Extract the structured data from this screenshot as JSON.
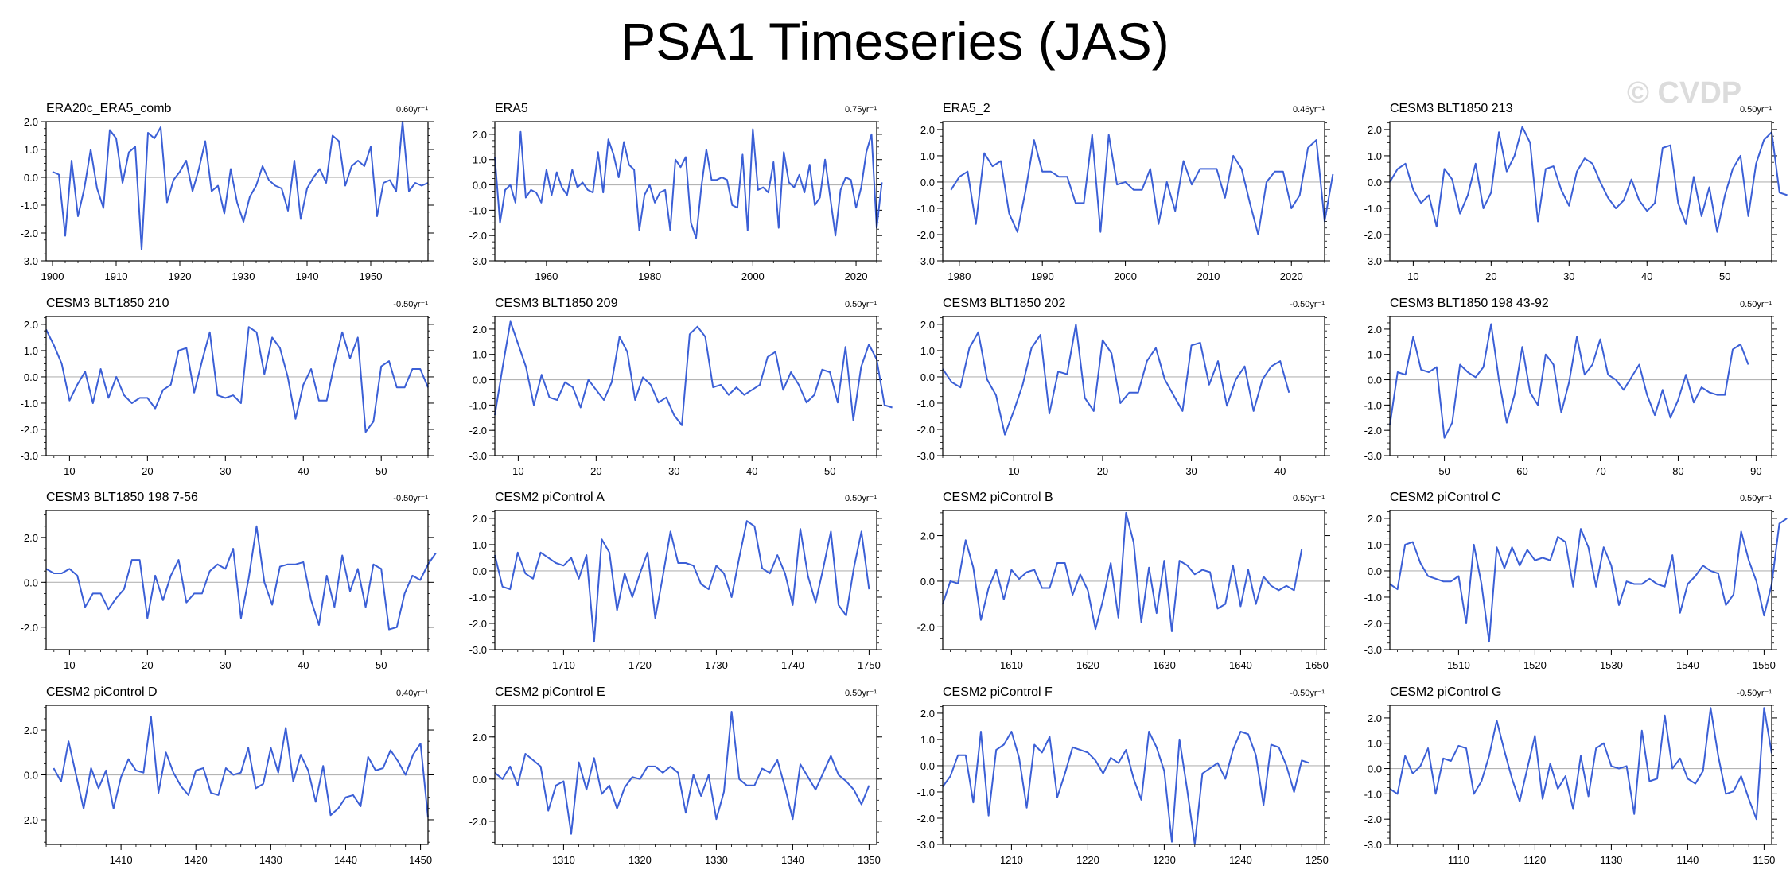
{
  "page": {
    "title": "PSA1 Timeseries (JAS)",
    "watermark": "© CVDP"
  },
  "style": {
    "line_color": "#3b5fd6",
    "zero_line_color": "#b4b4b4",
    "axis_color": "#000000"
  },
  "chart_data": [
    {
      "type": "line",
      "title": "ERA20c_ERA5_comb",
      "trend": "0.60yr⁻¹",
      "xlim": [
        1899,
        1959
      ],
      "ylim": [
        -3,
        2
      ],
      "yticks": [
        -3,
        -2,
        -1,
        0,
        1,
        2
      ],
      "ytick_labels": [
        "-3.0",
        "-2.0",
        "-1.0",
        "0.0",
        "1.0",
        "2.0"
      ],
      "xticks": [
        1900,
        1910,
        1920,
        1930,
        1940,
        1950
      ],
      "x_start": 1900,
      "values": [
        0.2,
        0.1,
        -2.1,
        0.6,
        -1.4,
        -0.4,
        1.0,
        -0.4,
        -1.1,
        1.7,
        1.4,
        -0.2,
        0.9,
        1.1,
        -2.6,
        1.6,
        1.4,
        1.8,
        -0.9,
        -0.1,
        0.2,
        0.6,
        -0.5,
        0.3,
        1.3,
        -0.5,
        -0.3,
        -1.3,
        0.3,
        -0.9,
        -1.6,
        -0.7,
        -0.3,
        0.4,
        -0.1,
        -0.3,
        -0.4,
        -1.2,
        0.6,
        -1.5,
        -0.4,
        0.0,
        0.3,
        -0.2,
        1.5,
        1.3,
        -0.3,
        0.4,
        0.6,
        0.4,
        1.1,
        -1.4,
        -0.2,
        -0.1,
        -0.5,
        2.0,
        -0.5,
        -0.2,
        -0.3,
        -0.2
      ]
    },
    {
      "type": "line",
      "title": "ERA5",
      "trend": "0.75yr⁻¹",
      "xlim": [
        1950,
        2024
      ],
      "ylim": [
        -3,
        2.5
      ],
      "yticks": [
        -3,
        -2,
        -1,
        0,
        1,
        2
      ],
      "ytick_labels": [
        "-3.0",
        "-2.0",
        "-1.0",
        "0.0",
        "1.0",
        "2.0"
      ],
      "xticks": [
        1960,
        1980,
        2000,
        2020
      ],
      "x_start": 1950,
      "values": [
        1.1,
        -1.5,
        -0.2,
        0.0,
        -0.7,
        2.1,
        -0.5,
        -0.2,
        -0.3,
        -0.7,
        0.6,
        -0.4,
        0.5,
        -0.1,
        -0.4,
        0.6,
        -0.1,
        0.1,
        -0.2,
        -0.3,
        1.3,
        -0.3,
        1.8,
        1.2,
        0.3,
        1.7,
        0.8,
        0.6,
        -1.8,
        -0.4,
        0.0,
        -0.7,
        -0.3,
        -0.2,
        -1.8,
        1.0,
        0.7,
        1.1,
        -1.5,
        -2.1,
        -0.1,
        1.4,
        0.2,
        0.2,
        0.3,
        0.2,
        -0.8,
        -0.9,
        1.2,
        -1.8,
        2.2,
        -0.2,
        -0.1,
        -0.3,
        0.9,
        -1.7,
        1.3,
        0.1,
        -0.1,
        0.4,
        -0.3,
        0.8,
        -0.8,
        -0.5,
        1.0,
        -0.5,
        -2.0,
        -0.2,
        0.3,
        0.2,
        -0.9,
        -0.1,
        1.3,
        2.0,
        -1.7,
        0.1
      ]
    },
    {
      "type": "line",
      "title": "ERA5_2",
      "trend": "0.46yr⁻¹",
      "xlim": [
        1978,
        2024
      ],
      "ylim": [
        -3,
        2.3
      ],
      "yticks": [
        -3,
        -2,
        -1,
        0,
        1,
        2
      ],
      "ytick_labels": [
        "-3.0",
        "-2.0",
        "-1.0",
        "0.0",
        "1.0",
        "2.0"
      ],
      "xticks": [
        1980,
        1990,
        2000,
        2010,
        2020
      ],
      "x_start": 1979,
      "values": [
        -0.3,
        0.2,
        0.4,
        -1.6,
        1.1,
        0.6,
        0.8,
        -1.2,
        -1.9,
        -0.3,
        1.6,
        0.4,
        0.4,
        0.2,
        0.2,
        -0.8,
        -0.8,
        1.8,
        -1.9,
        1.8,
        -0.1,
        0.0,
        -0.3,
        -0.3,
        0.5,
        -1.6,
        0.0,
        -1.1,
        0.8,
        -0.1,
        0.5,
        0.5,
        0.5,
        -0.6,
        1.0,
        0.5,
        -0.8,
        -2.0,
        0.0,
        0.4,
        0.4,
        -1.0,
        -0.5,
        1.3,
        1.6,
        -1.5,
        0.3
      ]
    },
    {
      "type": "line",
      "title": "CESM3 BLT1850 213",
      "trend": "0.50yr⁻¹",
      "xlim": [
        7,
        56
      ],
      "ylim": [
        -3,
        2.3
      ],
      "yticks": [
        -3,
        -2,
        -1,
        0,
        1,
        2
      ],
      "ytick_labels": [
        "-3.0",
        "-2.0",
        "-1.0",
        "0.0",
        "1.0",
        "2.0"
      ],
      "xticks": [
        10,
        20,
        30,
        40,
        50
      ],
      "x_start": 7,
      "values": [
        0.0,
        0.5,
        0.7,
        -0.3,
        -0.8,
        -0.5,
        -1.7,
        0.5,
        0.1,
        -1.2,
        -0.5,
        0.7,
        -1.0,
        -0.4,
        1.9,
        0.4,
        1.0,
        2.1,
        1.5,
        -1.5,
        0.5,
        0.6,
        -0.3,
        -0.9,
        0.4,
        0.9,
        0.7,
        0.0,
        -0.6,
        -1.0,
        -0.7,
        0.1,
        -0.7,
        -1.1,
        -0.8,
        1.3,
        1.4,
        -0.8,
        -1.6,
        0.2,
        -1.3,
        -0.2,
        -1.9,
        -0.5,
        0.5,
        1.0,
        -1.3,
        0.7,
        1.6,
        1.9,
        -0.4,
        -0.5
      ]
    },
    {
      "type": "line",
      "title": "CESM3 BLT1850 210",
      "trend": "-0.50yr⁻¹",
      "xlim": [
        7,
        56
      ],
      "ylim": [
        -3,
        2.3
      ],
      "yticks": [
        -3,
        -2,
        -1,
        0,
        1,
        2
      ],
      "ytick_labels": [
        "-3.0",
        "-2.0",
        "-1.0",
        "0.0",
        "1.0",
        "2.0"
      ],
      "xticks": [
        10,
        20,
        30,
        40,
        50
      ],
      "x_start": 7,
      "values": [
        1.8,
        1.2,
        0.5,
        -0.9,
        -0.3,
        0.2,
        -1.0,
        0.3,
        -0.8,
        0.0,
        -0.7,
        -1.0,
        -0.8,
        -0.8,
        -1.2,
        -0.5,
        -0.3,
        1.0,
        1.1,
        -0.6,
        0.6,
        1.7,
        -0.7,
        -0.8,
        -0.7,
        -1.0,
        1.9,
        1.7,
        0.1,
        1.5,
        1.1,
        0.0,
        -1.6,
        -0.3,
        0.3,
        -0.9,
        -0.9,
        0.5,
        1.7,
        0.7,
        1.5,
        -2.1,
        -1.7,
        0.4,
        0.6,
        -0.4,
        -0.4,
        0.3,
        0.3,
        -0.4
      ]
    },
    {
      "type": "line",
      "title": "CESM3 BLT1850 209",
      "trend": "0.50yr⁻¹",
      "xlim": [
        7,
        56
      ],
      "ylim": [
        -3,
        2.5
      ],
      "yticks": [
        -3,
        -2,
        -1,
        0,
        1,
        2
      ],
      "ytick_labels": [
        "-3.0",
        "-2.0",
        "-1.0",
        "0.0",
        "1.0",
        "2.0"
      ],
      "xticks": [
        10,
        20,
        30,
        40,
        50
      ],
      "x_start": 7,
      "values": [
        -1.4,
        0.5,
        2.3,
        1.4,
        0.5,
        -1.0,
        0.2,
        -0.7,
        -0.8,
        -0.1,
        -0.3,
        -1.1,
        0.0,
        -0.4,
        -0.8,
        -0.1,
        1.7,
        1.1,
        -0.8,
        0.1,
        -0.2,
        -0.9,
        -0.7,
        -1.4,
        -1.8,
        1.8,
        2.1,
        1.7,
        -0.3,
        -0.2,
        -0.6,
        -0.3,
        -0.6,
        -0.4,
        -0.2,
        0.9,
        1.1,
        -0.4,
        0.3,
        -0.2,
        -0.9,
        -0.6,
        0.4,
        0.3,
        -0.9,
        1.3,
        -1.6,
        0.5,
        1.4,
        0.8,
        -1.0,
        -1.1
      ]
    },
    {
      "type": "line",
      "title": "CESM3 BLT1850 202",
      "trend": "-0.50yr⁻¹",
      "xlim": [
        2,
        45
      ],
      "ylim": [
        -3,
        2.3
      ],
      "yticks": [
        -3,
        -2,
        -1,
        0,
        1,
        2
      ],
      "ytick_labels": [
        "-3.0",
        "-2.0",
        "-1.0",
        "0.0",
        "1.0",
        "2.0"
      ],
      "xticks": [
        10,
        20,
        30,
        40
      ],
      "x_start": 2,
      "values": [
        0.3,
        -0.2,
        -0.4,
        1.1,
        1.7,
        -0.1,
        -0.7,
        -2.2,
        -1.3,
        -0.3,
        1.1,
        1.6,
        -1.4,
        0.2,
        0.1,
        2.0,
        -0.8,
        -1.3,
        1.4,
        0.9,
        -1.0,
        -0.6,
        -0.6,
        0.6,
        1.1,
        -0.1,
        -0.7,
        -1.3,
        1.2,
        1.3,
        -0.3,
        0.6,
        -1.1,
        -0.1,
        0.4,
        -1.3,
        -0.1,
        0.4,
        0.6,
        -0.6
      ]
    },
    {
      "type": "line",
      "title": "CESM3 BLT1850 198 43-92",
      "trend": "0.50yr⁻¹",
      "xlim": [
        43,
        92
      ],
      "ylim": [
        -3,
        2.5
      ],
      "yticks": [
        -3,
        -2,
        -1,
        0,
        1,
        2
      ],
      "ytick_labels": [
        "-3.0",
        "-2.0",
        "-1.0",
        "0.0",
        "1.0",
        "2.0"
      ],
      "xticks": [
        50,
        60,
        70,
        80,
        90
      ],
      "x_start": 43,
      "values": [
        -1.8,
        0.3,
        0.2,
        1.7,
        0.4,
        0.3,
        0.5,
        -2.3,
        -1.7,
        0.6,
        0.3,
        0.1,
        0.5,
        2.2,
        0.0,
        -1.7,
        -0.6,
        1.3,
        -0.5,
        -1.0,
        1.0,
        0.6,
        -1.3,
        -0.1,
        1.7,
        0.2,
        0.6,
        1.6,
        0.2,
        0.0,
        -0.4,
        0.1,
        0.6,
        -0.6,
        -1.4,
        -0.4,
        -1.5,
        -0.8,
        0.2,
        -0.9,
        -0.3,
        -0.5,
        -0.6,
        -0.6,
        1.2,
        1.4,
        0.6
      ]
    },
    {
      "type": "line",
      "title": "CESM3 BLT1850 198 7-56",
      "trend": "-0.50yr⁻¹",
      "xlim": [
        7,
        56
      ],
      "ylim": [
        -3,
        3.2
      ],
      "yticks": [
        -2,
        0,
        2
      ],
      "ytick_labels": [
        "-2.0",
        "0.0",
        "2.0"
      ],
      "xticks": [
        10,
        20,
        30,
        40,
        50
      ],
      "x_start": 7,
      "values": [
        0.6,
        0.4,
        0.4,
        0.6,
        0.3,
        -1.1,
        -0.5,
        -0.5,
        -1.2,
        -0.7,
        -0.3,
        1.0,
        1.0,
        -1.6,
        0.3,
        -0.8,
        0.3,
        1.0,
        -0.9,
        -0.5,
        -0.5,
        0.5,
        0.8,
        0.6,
        1.5,
        -1.6,
        0.2,
        2.5,
        0.0,
        -1.0,
        0.7,
        0.8,
        0.8,
        0.9,
        -0.8,
        -1.9,
        0.3,
        -1.1,
        1.2,
        -0.4,
        0.6,
        -1.1,
        0.8,
        0.6,
        -2.1,
        -2.0,
        -0.5,
        0.3,
        0.1,
        0.8,
        1.3
      ]
    },
    {
      "type": "line",
      "title": "CESM2 piControl A",
      "trend": "0.50yr⁻¹",
      "xlim": [
        1701,
        1751
      ],
      "ylim": [
        -3,
        2.3
      ],
      "yticks": [
        -3,
        -2,
        -1,
        0,
        1,
        2
      ],
      "ytick_labels": [
        "-3.0",
        "-2.0",
        "-1.0",
        "0.0",
        "1.0",
        "2.0"
      ],
      "xticks": [
        1710,
        1720,
        1730,
        1740,
        1750
      ],
      "x_start": 1701,
      "values": [
        0.6,
        -0.6,
        -0.7,
        0.7,
        -0.1,
        -0.3,
        0.7,
        0.5,
        0.3,
        0.2,
        0.5,
        -0.3,
        0.6,
        -2.7,
        1.2,
        0.7,
        -1.5,
        -0.1,
        -1.0,
        -0.1,
        0.7,
        -1.8,
        -0.2,
        1.5,
        0.3,
        0.3,
        0.2,
        -0.5,
        -0.7,
        0.2,
        -0.1,
        -1.0,
        0.5,
        1.9,
        1.7,
        0.1,
        -0.1,
        0.6,
        -0.1,
        -1.3,
        1.6,
        -0.2,
        -1.2,
        0.1,
        1.5,
        -1.3,
        -1.7,
        0.1,
        1.5,
        -0.7
      ]
    },
    {
      "type": "line",
      "title": "CESM2 piControl B",
      "trend": "0.50yr⁻¹",
      "xlim": [
        1601,
        1651
      ],
      "ylim": [
        -3,
        3.1
      ],
      "yticks": [
        -2,
        0,
        2
      ],
      "ytick_labels": [
        "-2.0",
        "0.0",
        "2.0"
      ],
      "xticks": [
        1610,
        1620,
        1630,
        1640,
        1650
      ],
      "x_start": 1601,
      "values": [
        -1.0,
        0.0,
        -0.1,
        1.8,
        0.6,
        -1.7,
        -0.3,
        0.5,
        -0.8,
        0.5,
        0.1,
        0.4,
        0.5,
        -0.3,
        -0.3,
        0.8,
        0.8,
        -0.6,
        0.3,
        -0.4,
        -2.1,
        -0.8,
        0.8,
        -1.6,
        3.0,
        1.7,
        -1.8,
        0.6,
        -1.4,
        0.9,
        -2.2,
        0.9,
        0.7,
        0.3,
        0.5,
        0.4,
        -1.2,
        -1.0,
        0.7,
        -1.1,
        0.5,
        -1.0,
        0.2,
        -0.2,
        -0.4,
        -0.2,
        -0.4,
        1.4
      ]
    },
    {
      "type": "line",
      "title": "CESM2 piControl C",
      "trend": "0.50yr⁻¹",
      "xlim": [
        1501,
        1551
      ],
      "ylim": [
        -3,
        2.3
      ],
      "yticks": [
        -3,
        -2,
        -1,
        0,
        1,
        2
      ],
      "ytick_labels": [
        "-3.0",
        "-2.0",
        "-1.0",
        "0.0",
        "1.0",
        "2.0"
      ],
      "xticks": [
        1510,
        1520,
        1530,
        1540,
        1550
      ],
      "x_start": 1501,
      "values": [
        -0.5,
        -0.7,
        1.0,
        1.1,
        0.3,
        -0.2,
        -0.3,
        -0.4,
        -0.4,
        -0.2,
        -2.0,
        1.0,
        -0.5,
        -2.7,
        0.9,
        0.1,
        0.9,
        0.2,
        0.8,
        0.4,
        0.5,
        0.4,
        1.3,
        1.1,
        -0.6,
        1.6,
        0.9,
        -0.6,
        0.9,
        0.2,
        -1.3,
        -0.4,
        -0.5,
        -0.5,
        -0.3,
        -0.5,
        -0.6,
        0.6,
        -1.6,
        -0.5,
        -0.2,
        0.2,
        0.0,
        -0.1,
        -1.3,
        -0.9,
        1.5,
        0.4,
        -0.4,
        -1.7,
        -0.5,
        1.8,
        2.0
      ]
    },
    {
      "type": "line",
      "title": "CESM2 piControl D",
      "trend": "0.40yr⁻¹",
      "xlim": [
        1400,
        1451
      ],
      "ylim": [
        -3.1,
        3.1
      ],
      "yticks": [
        -2,
        0,
        2
      ],
      "ytick_labels": [
        "-2.0",
        "0.0",
        "2.0"
      ],
      "xticks": [
        1410,
        1420,
        1430,
        1440,
        1450
      ],
      "x_start": 1401,
      "values": [
        0.3,
        -0.3,
        1.5,
        0.0,
        -1.5,
        0.3,
        -0.6,
        0.2,
        -1.5,
        -0.1,
        0.7,
        0.2,
        0.1,
        2.6,
        -0.8,
        1.0,
        0.1,
        -0.5,
        -0.9,
        0.2,
        0.3,
        -0.8,
        -0.9,
        0.3,
        0.0,
        0.1,
        1.2,
        -0.6,
        -0.4,
        1.2,
        0.1,
        2.1,
        -0.3,
        0.9,
        0.2,
        -1.2,
        0.4,
        -1.8,
        -1.5,
        -1.0,
        -0.9,
        -1.4,
        0.8,
        0.2,
        0.3,
        1.1,
        0.6,
        0.0,
        0.9,
        1.4,
        -1.9
      ]
    },
    {
      "type": "line",
      "title": "CESM2 piControl E",
      "trend": "0.50yr⁻¹",
      "xlim": [
        1301,
        1351
      ],
      "ylim": [
        -3.1,
        3.5
      ],
      "yticks": [
        -2,
        0,
        2
      ],
      "ytick_labels": [
        "-2.0",
        "0.0",
        "2.0"
      ],
      "xticks": [
        1310,
        1320,
        1330,
        1340,
        1350
      ],
      "x_start": 1301,
      "values": [
        0.3,
        0.0,
        0.6,
        -0.3,
        1.2,
        0.9,
        0.6,
        -1.5,
        -0.3,
        -0.1,
        -2.6,
        0.8,
        -0.5,
        1.0,
        -0.7,
        -0.3,
        -1.4,
        -0.4,
        0.1,
        0.0,
        0.6,
        0.6,
        0.3,
        0.6,
        0.3,
        -1.6,
        0.2,
        -0.8,
        0.2,
        -1.9,
        -0.6,
        3.2,
        0.0,
        -0.3,
        -0.3,
        0.5,
        0.3,
        0.9,
        -0.4,
        -1.9,
        0.7,
        0.1,
        -0.5,
        0.3,
        1.1,
        0.2,
        -0.1,
        -0.5,
        -1.2,
        -0.3
      ]
    },
    {
      "type": "line",
      "title": "CESM2 piControl F",
      "trend": "-0.50yr⁻¹",
      "xlim": [
        1201,
        1251
      ],
      "ylim": [
        -3,
        2.3
      ],
      "yticks": [
        -3,
        -2,
        -1,
        0,
        1,
        2
      ],
      "ytick_labels": [
        "-3.0",
        "-2.0",
        "-1.0",
        "0.0",
        "1.0",
        "2.0"
      ],
      "xticks": [
        1210,
        1220,
        1230,
        1240,
        1250
      ],
      "x_start": 1201,
      "values": [
        -0.8,
        -0.4,
        0.4,
        0.4,
        -1.4,
        1.3,
        -1.9,
        0.6,
        0.8,
        1.3,
        0.3,
        -1.6,
        0.8,
        0.5,
        1.1,
        -1.2,
        -0.3,
        0.7,
        0.6,
        0.5,
        0.2,
        -0.3,
        0.3,
        0.1,
        0.6,
        -0.5,
        -1.3,
        1.3,
        0.7,
        -0.2,
        -2.9,
        1.0,
        -0.9,
        -3.0,
        -0.3,
        -0.1,
        0.1,
        -0.5,
        0.6,
        1.3,
        1.2,
        0.4,
        -1.5,
        0.8,
        0.7,
        0.0,
        -1.0,
        0.2,
        0.1
      ]
    },
    {
      "type": "line",
      "title": "CESM2 piControl G",
      "trend": "-0.50yr⁻¹",
      "xlim": [
        1101,
        1151
      ],
      "ylim": [
        -3,
        2.5
      ],
      "yticks": [
        -3,
        -2,
        -1,
        0,
        1,
        2
      ],
      "ytick_labels": [
        "-3.0",
        "-2.0",
        "-1.0",
        "0.0",
        "1.0",
        "2.0"
      ],
      "xticks": [
        1110,
        1120,
        1130,
        1140,
        1150
      ],
      "x_start": 1101,
      "values": [
        -0.8,
        -1.0,
        0.5,
        -0.2,
        0.1,
        0.8,
        -1.0,
        0.4,
        0.3,
        0.9,
        0.8,
        -1.0,
        -0.5,
        0.5,
        1.9,
        0.7,
        -0.4,
        -1.3,
        0.0,
        1.3,
        -1.2,
        0.2,
        -0.8,
        -0.3,
        -1.6,
        0.5,
        -1.1,
        0.8,
        1.0,
        0.1,
        0.0,
        0.1,
        -1.8,
        1.5,
        -0.5,
        -0.4,
        2.1,
        0.0,
        0.4,
        -0.4,
        -0.6,
        -0.1,
        2.4,
        0.5,
        -1.0,
        -0.9,
        -0.3,
        -1.2,
        -2.0,
        2.4,
        0.6
      ]
    }
  ]
}
